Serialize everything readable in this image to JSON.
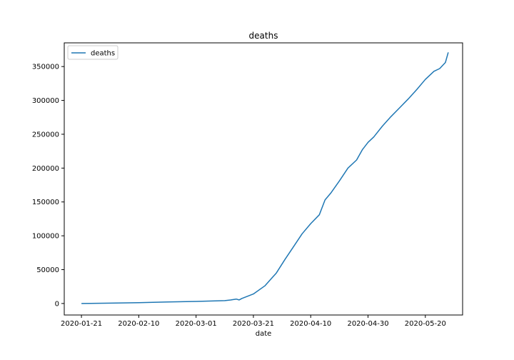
{
  "chart_data": {
    "type": "line",
    "title": "deaths",
    "xlabel": "date",
    "ylabel": "",
    "legend": {
      "entries": [
        "deaths"
      ],
      "position": "top-left"
    },
    "grid": false,
    "line_color": "#1f77b4",
    "x_tick_labels": [
      "2020-01-21",
      "2020-02-10",
      "2020-03-01",
      "2020-03-21",
      "2020-04-10",
      "2020-04-30",
      "2020-05-20"
    ],
    "y_tick_labels": [
      "0",
      "50000",
      "100000",
      "150000",
      "200000",
      "250000",
      "300000",
      "350000"
    ],
    "ylim": [
      -17000,
      385000
    ],
    "xlim": [
      "2020-01-15",
      "2020-06-02"
    ],
    "series": [
      {
        "name": "deaths",
        "x": [
          "2020-01-21",
          "2020-01-31",
          "2020-02-10",
          "2020-02-20",
          "2020-03-01",
          "2020-03-11",
          "2020-03-13",
          "2020-03-15",
          "2020-03-16",
          "2020-03-17",
          "2020-03-21",
          "2020-03-25",
          "2020-03-29",
          "2020-04-01",
          "2020-04-04",
          "2020-04-07",
          "2020-04-10",
          "2020-04-13",
          "2020-04-15",
          "2020-04-17",
          "2020-04-20",
          "2020-04-23",
          "2020-04-26",
          "2020-04-28",
          "2020-04-30",
          "2020-05-02",
          "2020-05-05",
          "2020-05-08",
          "2020-05-11",
          "2020-05-14",
          "2020-05-17",
          "2020-05-20",
          "2020-05-23",
          "2020-05-25",
          "2020-05-27",
          "2020-05-28"
        ],
        "y": [
          0,
          500,
          1100,
          2200,
          3000,
          4200,
          5200,
          6500,
          5300,
          7500,
          14000,
          26000,
          45000,
          65000,
          84000,
          103000,
          118000,
          131000,
          153000,
          163000,
          181000,
          200000,
          212000,
          227000,
          238000,
          246000,
          262000,
          276000,
          289000,
          302000,
          316000,
          331000,
          343000,
          347000,
          356000,
          371000
        ]
      }
    ]
  }
}
